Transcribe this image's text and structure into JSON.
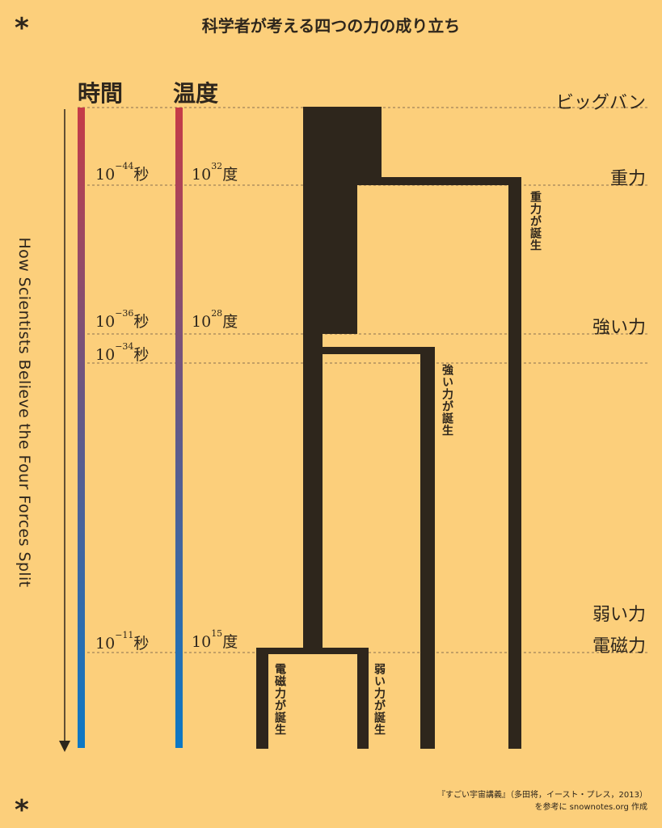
{
  "title": "科学者が考える四つの力の成り立ち",
  "decor": {
    "top_left": "*",
    "bottom_left": "*"
  },
  "columns": {
    "time": "時間",
    "temperature": "温度"
  },
  "vertical_title": "How Scientists Believe the Four Forces Split",
  "events": {
    "big_bang": "ビッグバン",
    "gravity": "重力",
    "strong": "強い力",
    "weak": "弱い力",
    "electromagnetic": "電磁力"
  },
  "time_marks": [
    {
      "base": "10",
      "exp": "−44",
      "unit": "秒"
    },
    {
      "base": "10",
      "exp": "−36",
      "unit": "秒"
    },
    {
      "base": "10",
      "exp": "−34",
      "unit": "秒"
    },
    {
      "base": "10",
      "exp": "−11",
      "unit": "秒"
    }
  ],
  "temp_marks": [
    {
      "base": "10",
      "exp": "32",
      "unit": "度"
    },
    {
      "base": "10",
      "exp": "28",
      "unit": "度"
    },
    {
      "base": "10",
      "exp": "15",
      "unit": "度"
    }
  ],
  "branch_labels": {
    "gravity": "重力が誕生",
    "strong": "強い力が誕生",
    "electromagnetic": "電磁力が誕生",
    "weak": "弱い力が誕生"
  },
  "credit": {
    "line1": "『すごい宇宙講義』（多田将，イースト・プレス，2013）",
    "line2": "を参考に snownotes.org 作成"
  },
  "colors": {
    "background": "#fccf7b",
    "tree": "#2e261c",
    "bar_top": "#c63b47",
    "bar_bottom": "#0c78c5"
  }
}
